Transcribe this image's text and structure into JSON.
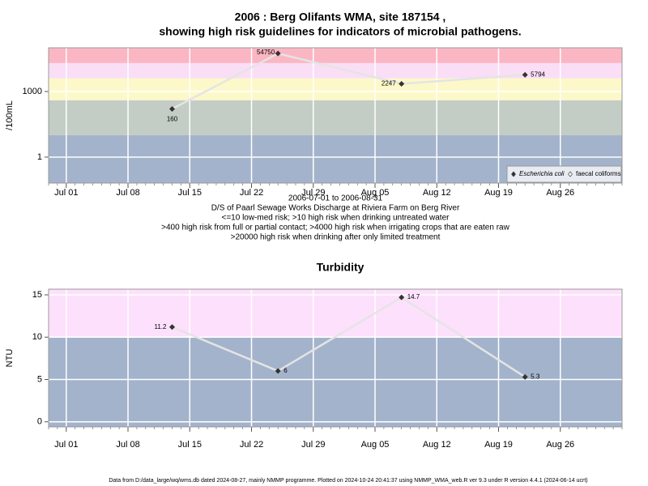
{
  "chart_data": [
    {
      "type": "line",
      "title": [
        "2006 : Berg Olifants WMA, site 187154 ,",
        "showing high risk guidelines for indicators of microbial pathogens."
      ],
      "subtitle": [
        "2006-07-01 to 2006-08-31",
        "D/S of Paarl Sewage Works Discharge at Riviera Farm on Berg River",
        "<=10 low-med risk; >10 high risk when drinking untreated water",
        ">400 high risk from full or partial contact; >4000 high risk when irrigating crops that are eaten raw",
        ">20000 high risk when drinking after only limited treatment"
      ],
      "y_label": "/100mL",
      "log_scale": true,
      "x": [
        "Jul 13",
        "Jul 25",
        "Aug 08",
        "Aug 22"
      ],
      "series": [
        {
          "name": "Escherichia coli",
          "color": "#333333",
          "values": [
            160,
            54750,
            2247,
            5794
          ]
        }
      ],
      "xlim": [
        "Jun 29",
        "Sep 02"
      ],
      "xticks": [
        "Jul 01",
        "Jul 08",
        "Jul 15",
        "Jul 22",
        "Jul 29",
        "Aug 05",
        "Aug 12",
        "Aug 19",
        "Aug 26"
      ],
      "ylim": [
        0.065,
        100000
      ],
      "yticks": [
        1,
        1000
      ],
      "thresholds": [
        10,
        400,
        4000,
        20000
      ],
      "band_colors": [
        "#a3b3cb",
        "#c4cdc5",
        "#fdf8c9",
        "#f9def6",
        "#fbb6c3"
      ],
      "line_color": "#e4e4e4",
      "grid": true,
      "legend": {
        "position": "bottom-right",
        "entries": [
          {
            "name": "Escherichia coli",
            "marker": "filled"
          },
          {
            "name": "faecal coliforms",
            "marker": "open"
          }
        ]
      }
    },
    {
      "type": "line",
      "title": [
        "Turbidity"
      ],
      "y_label": "NTU",
      "log_scale": false,
      "x": [
        "Jul 13",
        "Jul 25",
        "Aug 08",
        "Aug 22"
      ],
      "series": [
        {
          "name": "Turbidity",
          "color": "#333333",
          "values": [
            11.2,
            6,
            14.7,
            5.3
          ]
        }
      ],
      "xlim": [
        "Jun 29",
        "Sep 02"
      ],
      "xticks": [
        "Jul 01",
        "Jul 08",
        "Jul 15",
        "Jul 22",
        "Jul 29",
        "Aug 05",
        "Aug 12",
        "Aug 19",
        "Aug 26"
      ],
      "ylim": [
        -0.6,
        15.67
      ],
      "yticks": [
        0,
        5,
        10,
        15
      ],
      "thresholds": [
        10
      ],
      "band_colors": [
        "#a3b3cb",
        "#fde0fb"
      ],
      "line_color": "#e4e4e4",
      "grid": true
    }
  ],
  "footer": "Data from D:/data_large/wq/wms.db dated 2024-08-27, mainly NMMP programme. Plotted on 2024-10-24 20:41:37 using NMMP_WMA_web.R ver 9.3 under R version 4.4.1 (2024-06-14 ucrt)"
}
